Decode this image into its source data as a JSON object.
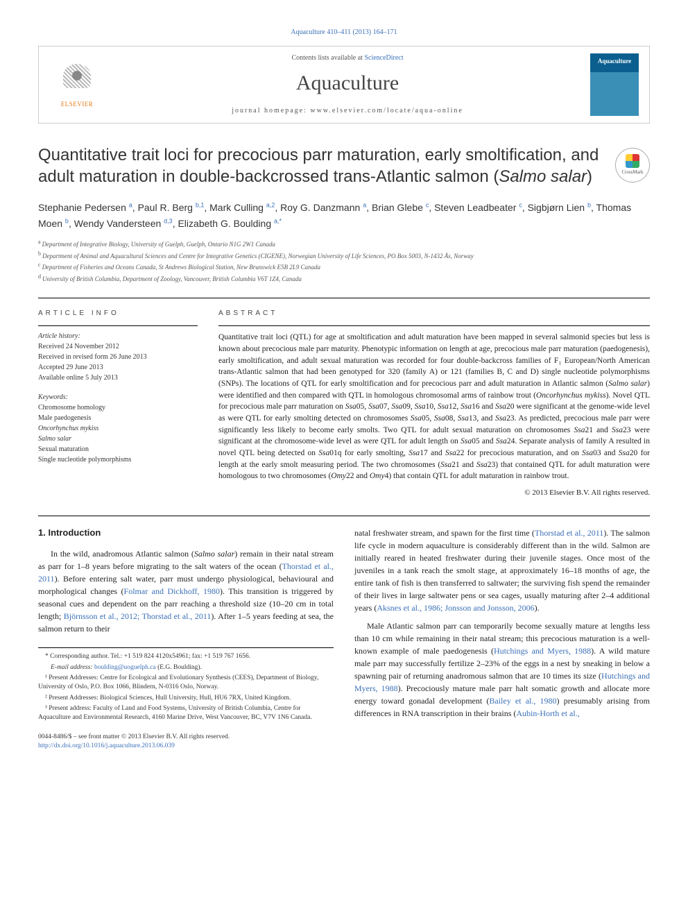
{
  "top_citation": "Aquaculture 410–411 (2013) 164–171",
  "header": {
    "contents_prefix": "Contents lists available at ",
    "contents_link": "ScienceDirect",
    "journal_name": "Aquaculture",
    "homepage_prefix": "journal homepage: ",
    "homepage": "www.elsevier.com/locate/aqua-online",
    "publisher": "ELSEVIER",
    "cover_label": "Aquaculture"
  },
  "crossmark": "CrossMark",
  "title_parts": {
    "line1": "Quantitative trait loci for precocious parr maturation, early smoltification, and adult maturation in double-backcrossed trans-Atlantic salmon (",
    "species": "Salmo salar",
    "line3": ")"
  },
  "authors": [
    {
      "name": "Stephanie Pedersen",
      "sup": "a"
    },
    {
      "name": "Paul R. Berg",
      "sup": "b,1"
    },
    {
      "name": "Mark Culling",
      "sup": "a,2"
    },
    {
      "name": "Roy G. Danzmann",
      "sup": "a"
    },
    {
      "name": "Brian Glebe",
      "sup": "c"
    },
    {
      "name": "Steven Leadbeater",
      "sup": "c"
    },
    {
      "name": "Sigbjørn Lien",
      "sup": "b"
    },
    {
      "name": "Thomas Moen",
      "sup": "b"
    },
    {
      "name": "Wendy Vandersteen",
      "sup": "d,3"
    },
    {
      "name": "Elizabeth G. Boulding",
      "sup": "a,*"
    }
  ],
  "affiliations": [
    {
      "sup": "a",
      "text": "Department of Integrative Biology, University of Guelph, Guelph, Ontario N1G 2W1 Canada"
    },
    {
      "sup": "b",
      "text": "Department of Animal and Aquacultural Sciences and Centre for Integrative Genetics (CIGENE), Norwegian University of Life Sciences, PO Box 5003, N-1432 Ås, Norway"
    },
    {
      "sup": "c",
      "text": "Department of Fisheries and Oceans Canada, St Andrews Biological Station, New Brunswick E5B 2L9 Canada"
    },
    {
      "sup": "d",
      "text": "University of British Columbia, Department of Zoology, Vancouver, British Columbia V6T 1Z4, Canada"
    }
  ],
  "article_info": {
    "heading": "ARTICLE INFO",
    "history_label": "Article history:",
    "history": [
      "Received 24 November 2012",
      "Received in revised form 26 June 2013",
      "Accepted 29 June 2013",
      "Available online 5 July 2013"
    ],
    "keywords_label": "Keywords:",
    "keywords": [
      "Chromosome homology",
      "Male paedogenesis",
      "Oncorhynchus mykiss",
      "Salmo salar",
      "Sexual maturation",
      "Single nucleotide polymorphisms"
    ]
  },
  "abstract": {
    "heading": "ABSTRACT",
    "text_parts": [
      "Quantitative trait loci (QTL) for age at smoltification and adult maturation have been mapped in several salmonid species but less is known about precocious male parr maturity. Phenotypic information on length at age, precocious male parr maturation (paedogenesis), early smoltification, and adult sexual maturation was recorded for four double-backcross families of F₁ European/North American trans-Atlantic salmon that had been genotyped for 320 (family A) or 121 (families B, C and D) single nucleotide polymorphisms (SNPs). The locations of QTL for early smoltification and for precocious parr and adult maturation in Atlantic salmon (",
      "Salmo salar",
      ") were identified and then compared with QTL in homologous chromosomal arms of rainbow trout (",
      "Oncorhynchus mykiss",
      "). Novel QTL for precocious male parr maturation on ",
      "Ssa",
      "05, ",
      "Ssa",
      "07, ",
      "Ssa",
      "09, ",
      "Ssa",
      "10, ",
      "Ssa",
      "12, ",
      "Ssa",
      "16 and ",
      "Ssa",
      "20 were significant at the genome-wide level as were QTL for early smolting detected on chromosomes ",
      "Ssa",
      "05, ",
      "Ssa",
      "08, ",
      "Ssa",
      "13, and ",
      "Ssa",
      "23. As predicted, precocious male parr were significantly less likely to become early smolts. Two QTL for adult sexual maturation on chromosomes ",
      "Ssa",
      "21 and ",
      "Ssa",
      "23 were significant at the chromosome-wide level as were QTL for adult length on ",
      "Ssa",
      "05 and ",
      "Ssa",
      "24. Separate analysis of family A resulted in novel QTL being detected on ",
      "Ssa",
      "01q for early smolting, ",
      "Ssa",
      "17 and ",
      "Ssa",
      "22 for precocious maturation, and on ",
      "Ssa",
      "03 and ",
      "Ssa",
      "20 for length at the early smolt measuring period. The two chromosomes (",
      "Ssa",
      "21 and ",
      "Ssa",
      "23) that contained QTL for adult maturation were homologous to two chromosomes (",
      "Omy",
      "22 and ",
      "Omy",
      "4) that contain QTL for adult maturation in rainbow trout."
    ],
    "copyright": "© 2013 Elsevier B.V. All rights reserved."
  },
  "introduction": {
    "heading": "1. Introduction",
    "col1_p1_parts": [
      "In the wild, anadromous Atlantic salmon (",
      "Salmo salar",
      ") remain in their natal stream as parr for 1–8 years before migrating to the salt waters of the ocean (",
      "Thorstad et al., 2011",
      "). Before entering salt water, parr must undergo physiological, behavioural and morphological changes (",
      "Folmar and Dickhoff, 1980",
      "). This transition is triggered by seasonal cues and dependent on the parr reaching a threshold size (10–20 cm in total length; ",
      "Björnsson et al., 2012; Thorstad et al., 2011",
      "). After 1–5 years feeding at sea, the salmon return to their"
    ],
    "col2_p1_parts": [
      "natal freshwater stream, and spawn for the first time (",
      "Thorstad et al., 2011",
      "). The salmon life cycle in modern aquaculture is considerably different than in the wild. Salmon are initially reared in heated freshwater during their juvenile stages. Once most of the juveniles in a tank reach the smolt stage, at approximately 16–18 months of age, the entire tank of fish is then transferred to saltwater; the surviving fish spend the remainder of their lives in large saltwater pens or sea cages, usually maturing after 2–4 additional years (",
      "Aksnes et al., 1986; Jonsson and Jonsson, 2006",
      ")."
    ],
    "col2_p2_parts": [
      "Male Atlantic salmon parr can temporarily become sexually mature at lengths less than 10 cm while remaining in their natal stream; this precocious maturation is a well-known example of male paedogenesis (",
      "Hutchings and Myers, 1988",
      "). A wild mature male parr may successfully fertilize 2–23% of the eggs in a nest by sneaking in below a spawning pair of returning anadromous salmon that are 10 times its size (",
      "Hutchings and Myers, 1988",
      "). Precociously mature male parr halt somatic growth and allocate more energy toward gonadal development (",
      "Bailey et al., 1980",
      ") presumably arising from differences in RNA transcription in their brains (",
      "Aubin-Horth et al.,"
    ]
  },
  "footnotes": {
    "corresponding": "* Corresponding author. Tel.: +1 519 824 4120x54961; fax: +1 519 767 1656.",
    "email_label": "E-mail address: ",
    "email": "boulding@uoguelph.ca",
    "email_suffix": " (E.G. Boulding).",
    "note1": "¹ Present Addresses: Centre for Ecological and Evolutionary Synthesis (CEES), Department of Biology, University of Oslo, P.O. Box 1066, Blindern, N-0316 Oslo, Norway.",
    "note2": "² Present Addresses: Biological Sciences, Hull University, Hull, HU6 7RX, United Kingdom.",
    "note3": "³ Present address: Faculty of Land and Food Systems, University of British Columbia, Centre for Aquaculture and Environmental Research, 4160 Marine Drive, West Vancouver, BC, V7V 1N6 Canada."
  },
  "footer": {
    "issn": "0044-8486/$ – see front matter © 2013 Elsevier B.V. All rights reserved.",
    "doi": "http://dx.doi.org/10.1016/j.aquaculture.2013.06.039"
  },
  "colors": {
    "link": "#3a6fb7",
    "elsevier_orange": "#e67817",
    "cover_top": "#0a5f8f",
    "cover_bottom": "#3a8fb7",
    "text": "#222222",
    "border": "#cccccc"
  }
}
